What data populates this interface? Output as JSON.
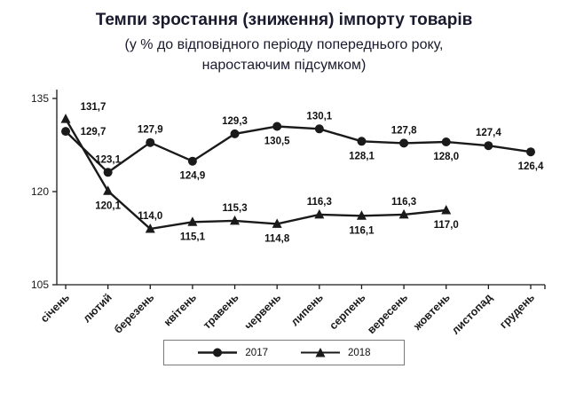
{
  "colors": {
    "title": "#1a1a2e",
    "chart_ink": "#1a1a1a",
    "legend_border": "#7a7a7a"
  },
  "chart_data": {
    "type": "line",
    "title": "Темпи зростання (зниження) імпорту товарів",
    "subtitle_line1": "(у % до відповідного періоду попереднього року,",
    "subtitle_line2": "наростаючим підсумком)",
    "categories": [
      "січень",
      "лютий",
      "березень",
      "квітень",
      "травень",
      "червень",
      "липень",
      "серпень",
      "вересень",
      "жовтень",
      "листопад",
      "грудень"
    ],
    "series": [
      {
        "name": "2017",
        "marker": "circle",
        "values": [
          129.7,
          123.1,
          127.9,
          124.9,
          129.3,
          130.5,
          130.1,
          128.1,
          127.8,
          128.0,
          127.4,
          126.4
        ],
        "label_pos": [
          "right",
          "above",
          "above",
          "below",
          "above",
          "below",
          "above",
          "below",
          "above",
          "below",
          "above",
          "below"
        ]
      },
      {
        "name": "2018",
        "marker": "triangle",
        "values": [
          131.7,
          120.1,
          114.0,
          115.1,
          115.3,
          114.8,
          116.3,
          116.1,
          116.3,
          117.0
        ],
        "label_pos": [
          "above-right",
          "below",
          "above",
          "below",
          "above",
          "below",
          "above",
          "below",
          "above",
          "below"
        ]
      }
    ],
    "ylim": [
      105,
      135
    ],
    "yticks": [
      105,
      120,
      135
    ],
    "grid": false,
    "legend_position": "bottom",
    "decimal_separator": ","
  }
}
